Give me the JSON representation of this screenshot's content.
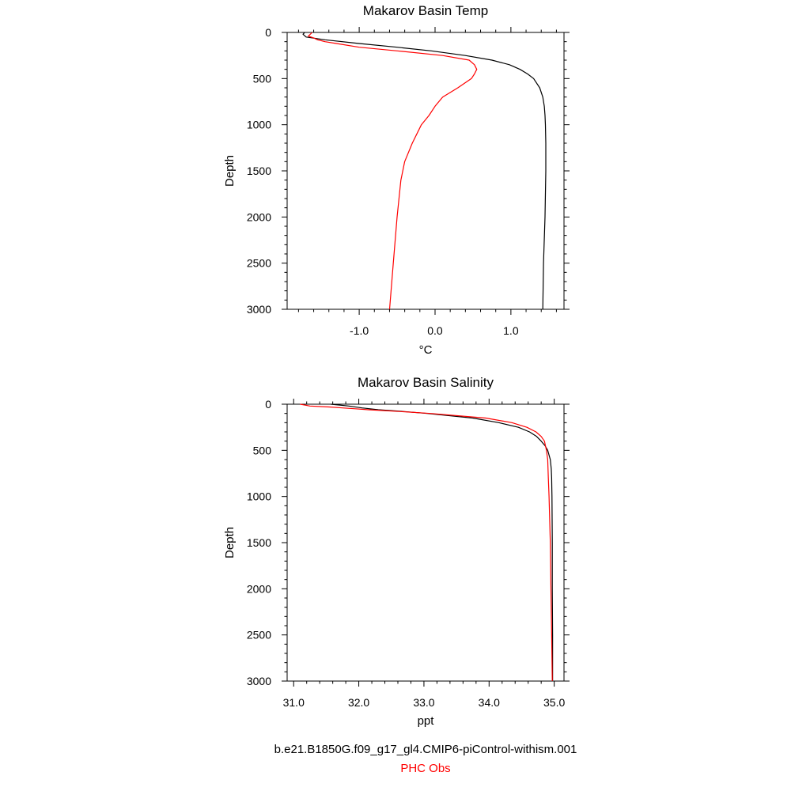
{
  "chart_data": [
    {
      "type": "line",
      "title": "Makarov Basin Temp",
      "xlabel": "°C",
      "ylabel": "Depth",
      "xlim": [
        -1.95,
        1.7
      ],
      "ylim": [
        3000,
        0
      ],
      "x_ticks": [
        -1.0,
        0.0,
        1.0
      ],
      "x_tick_labels": [
        "-1.0",
        "0.0",
        "1.0"
      ],
      "y_ticks": [
        0,
        500,
        1000,
        1500,
        2000,
        2500,
        3000
      ],
      "y_tick_labels": [
        "0",
        "500",
        "1000",
        "1500",
        "2000",
        "2500",
        "3000"
      ],
      "grid": false,
      "series": [
        {
          "color": "#000000",
          "depth": [
            0,
            20,
            50,
            80,
            120,
            160,
            200,
            250,
            300,
            350,
            400,
            450,
            500,
            600,
            700,
            800,
            900,
            1000,
            1200,
            1500,
            2000,
            2500,
            3000
          ],
          "values": [
            -1.72,
            -1.74,
            -1.7,
            -1.45,
            -1.0,
            -0.5,
            -0.05,
            0.4,
            0.75,
            0.98,
            1.12,
            1.22,
            1.3,
            1.38,
            1.42,
            1.44,
            1.45,
            1.455,
            1.46,
            1.46,
            1.45,
            1.43,
            1.42
          ]
        },
        {
          "color": "#ff0000",
          "depth": [
            0,
            40,
            60,
            80,
            100,
            120,
            160,
            200,
            250,
            300,
            350,
            400,
            450,
            500,
            600,
            700,
            800,
            900,
            1000,
            1200,
            1400,
            1600,
            2000,
            2500,
            3000
          ],
          "values": [
            -1.62,
            -1.67,
            -1.6,
            -1.55,
            -1.45,
            -1.3,
            -1.0,
            -0.5,
            0.1,
            0.45,
            0.52,
            0.55,
            0.52,
            0.48,
            0.3,
            0.1,
            0.0,
            -0.08,
            -0.18,
            -0.3,
            -0.4,
            -0.45,
            -0.5,
            -0.55,
            -0.6
          ]
        }
      ]
    },
    {
      "type": "line",
      "title": "Makarov Basin Salinity",
      "xlabel": "ppt",
      "ylabel": "Depth",
      "xlim": [
        30.9,
        35.15
      ],
      "ylim": [
        3000,
        0
      ],
      "x_ticks": [
        31.0,
        32.0,
        33.0,
        34.0,
        35.0
      ],
      "x_tick_labels": [
        "31.0",
        "32.0",
        "33.0",
        "34.0",
        "35.0"
      ],
      "y_ticks": [
        0,
        500,
        1000,
        1500,
        2000,
        2500,
        3000
      ],
      "y_tick_labels": [
        "0",
        "500",
        "1000",
        "1500",
        "2000",
        "2500",
        "3000"
      ],
      "grid": false,
      "series": [
        {
          "color": "#000000",
          "depth": [
            0,
            20,
            40,
            60,
            80,
            100,
            150,
            200,
            250,
            300,
            350,
            400,
            450,
            500,
            600,
            700,
            800,
            1000,
            1500,
            2000,
            2500,
            3000
          ],
          "values": [
            31.57,
            31.85,
            32.05,
            32.3,
            32.7,
            33.05,
            33.75,
            34.15,
            34.45,
            34.62,
            34.73,
            34.8,
            34.86,
            34.9,
            34.94,
            34.955,
            34.96,
            34.965,
            34.97,
            34.97,
            34.975,
            34.975
          ]
        },
        {
          "color": "#ff0000",
          "depth": [
            0,
            20,
            30,
            40,
            50,
            60,
            80,
            100,
            150,
            200,
            250,
            300,
            350,
            400,
            500,
            600,
            800,
            1000,
            1500,
            2000,
            2500,
            3000
          ],
          "values": [
            31.1,
            31.25,
            31.55,
            31.75,
            31.95,
            32.15,
            32.65,
            33.1,
            33.95,
            34.35,
            34.58,
            34.72,
            34.8,
            34.85,
            34.88,
            34.9,
            34.91,
            34.92,
            34.94,
            34.95,
            34.96,
            34.97
          ]
        }
      ]
    }
  ],
  "legend": {
    "model_label": "b.e21.B1850G.f09_g17_gl4.CMIP6-piControl-withism.001",
    "model_color": "#000000",
    "obs_label": "PHC Obs",
    "obs_color": "#ff0000"
  }
}
